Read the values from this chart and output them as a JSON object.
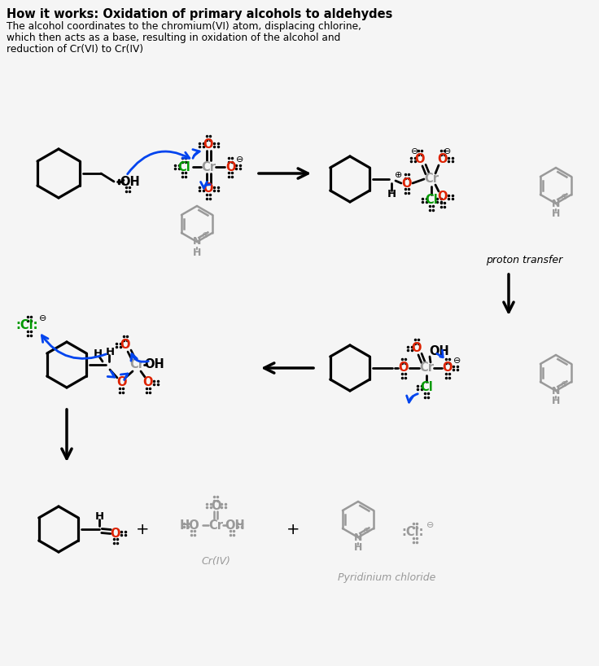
{
  "title_bold": "How it works: Oxidation of primary alcohols to aldehydes",
  "sub1": "The alcohol coordinates to the chromium(VI) atom, displacing chlorine,",
  "sub2": "which then acts as a base, resulting in oxidation of the alcohol and",
  "sub3": "reduction of Cr(VI) to Cr(IV)",
  "black": "#000000",
  "gray": "#999999",
  "red": "#dd2200",
  "green": "#009900",
  "blue": "#0044ee",
  "bg": "#f5f5f5"
}
